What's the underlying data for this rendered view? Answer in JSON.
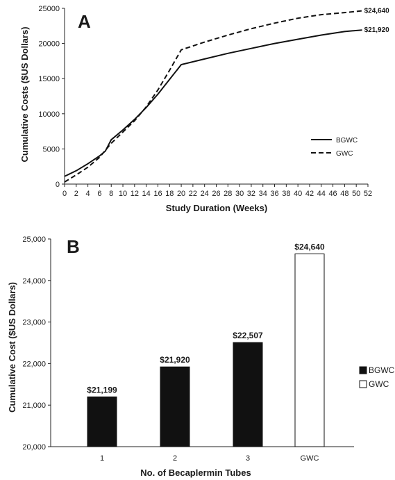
{
  "chart_data": [
    {
      "type": "line",
      "panel": "A",
      "xlabel": "Study Duration (Weeks)",
      "ylabel": "Cumulative Costs ($US Dollars)",
      "xlim": [
        0,
        52
      ],
      "ylim": [
        0,
        25000
      ],
      "x_ticks": [
        0,
        2,
        4,
        6,
        8,
        10,
        12,
        14,
        16,
        18,
        20,
        22,
        24,
        26,
        28,
        30,
        32,
        34,
        36,
        38,
        40,
        42,
        44,
        46,
        48,
        50,
        52
      ],
      "y_ticks": [
        0,
        5000,
        10000,
        15000,
        20000,
        25000
      ],
      "legend_position": "right",
      "series": [
        {
          "name": "BGWC",
          "style": "solid",
          "x": [
            0,
            2,
            4,
            6,
            7,
            8,
            10,
            12,
            14,
            16,
            18,
            20,
            24,
            28,
            32,
            36,
            40,
            44,
            48,
            51
          ],
          "y": [
            1100,
            1900,
            2900,
            4000,
            4700,
            6300,
            7700,
            9200,
            10900,
            12800,
            14900,
            17000,
            17800,
            18600,
            19300,
            20000,
            20600,
            21200,
            21700,
            21920
          ],
          "end_label": "$21,920"
        },
        {
          "name": "GWC",
          "style": "dashed",
          "x": [
            0,
            2,
            4,
            6,
            7,
            8,
            10,
            12,
            14,
            16,
            18,
            20,
            24,
            28,
            32,
            36,
            40,
            44,
            48,
            51
          ],
          "y": [
            300,
            1300,
            2400,
            3800,
            4800,
            5800,
            7400,
            9000,
            11000,
            13400,
            16200,
            19100,
            20200,
            21200,
            22100,
            22900,
            23600,
            24100,
            24400,
            24640
          ],
          "end_label": "$24,640"
        }
      ]
    },
    {
      "type": "bar",
      "panel": "B",
      "xlabel": "No. of Becaplermin Tubes",
      "ylabel": "Cumulative Cost ($US Dollars)",
      "ylim": [
        20000,
        25000
      ],
      "y_ticks": [
        "20,000",
        "21,000",
        "22,000",
        "23,000",
        "24,000",
        "25,000"
      ],
      "y_tick_values": [
        20000,
        21000,
        22000,
        23000,
        24000,
        25000
      ],
      "categories": [
        "1",
        "2",
        "3",
        "GWC"
      ],
      "values": [
        21199,
        21920,
        22507,
        24640
      ],
      "value_labels": [
        "$21,199",
        "$21,920",
        "$22,507",
        "$24,640"
      ],
      "bar_series": [
        "BGWC",
        "BGWC",
        "BGWC",
        "GWC"
      ],
      "legend": [
        {
          "name": "BGWC",
          "fill": "#111111"
        },
        {
          "name": "GWC",
          "fill": "#ffffff"
        }
      ],
      "legend_position": "right"
    }
  ]
}
